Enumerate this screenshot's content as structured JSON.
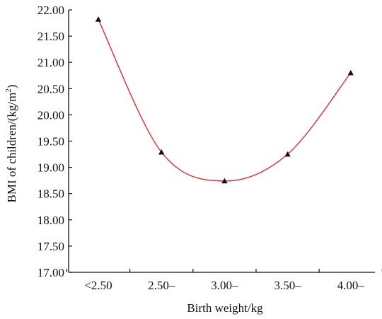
{
  "chart_data": {
    "type": "line",
    "categories": [
      "<2.50",
      "2.50–",
      "3.00–",
      "3.50–",
      "4.00–"
    ],
    "values": [
      21.82,
      19.29,
      18.74,
      19.25,
      20.8
    ],
    "xlabel": "Birth weight/kg",
    "ylabel_main": "BMI of children/(kg/m",
    "ylabel_sup": "2",
    "ylabel_close": ")",
    "ylim": [
      17.0,
      22.0
    ],
    "yticks": [
      "17.00",
      "17.50",
      "18.00",
      "18.50",
      "19.00",
      "19.50",
      "20.00",
      "20.50",
      "21.00",
      "21.50",
      "22.00"
    ],
    "ytick_values": [
      17.0,
      17.5,
      18.0,
      18.5,
      19.0,
      19.5,
      20.0,
      20.5,
      21.0,
      21.5,
      22.0
    ],
    "line_color": "#e8262b",
    "marker": "triangle",
    "grid": false
  }
}
